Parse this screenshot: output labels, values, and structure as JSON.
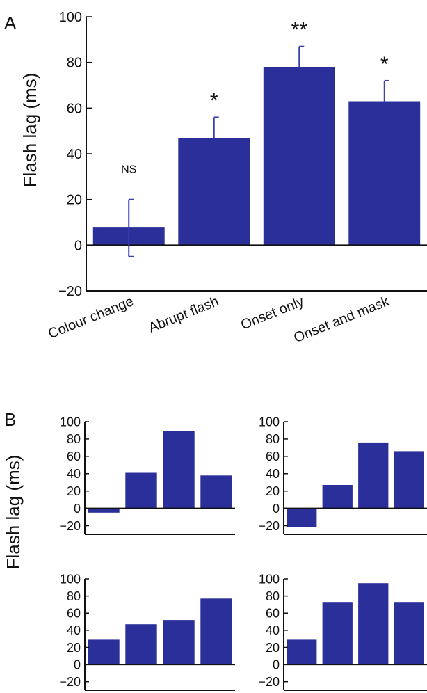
{
  "colors": {
    "bar": "#2a2f9a",
    "error_bar": "#3a3fb2",
    "axis": "#111111",
    "background": "#ffffff"
  },
  "panel_labels": [
    "A",
    "B"
  ],
  "shared_ylabel": "Flash lag (ms)",
  "chart_data": [
    {
      "type": "bar",
      "panel": "A",
      "categories": [
        "Colour change",
        "Abrupt flash",
        "Onset only",
        "Onset and mask"
      ],
      "values": [
        8,
        47,
        78,
        63
      ],
      "error_upper": [
        20,
        56,
        87,
        72
      ],
      "error_lower": [
        -5,
        null,
        null,
        null
      ],
      "significance": [
        "NS",
        "*",
        "**",
        "*"
      ],
      "ylabel": "Flash lag (ms)",
      "ylim": [
        -20,
        100
      ],
      "yticks": [
        "−20",
        "0",
        "20",
        "40",
        "60",
        "80",
        "100"
      ],
      "ytick_values": [
        -20,
        0,
        20,
        40,
        60,
        80,
        100
      ]
    },
    {
      "type": "bar",
      "panel": "B-top-left",
      "values": [
        -5,
        41,
        89,
        38
      ],
      "ylim": [
        -30,
        100
      ],
      "yticks": [
        "−20",
        "0",
        "20",
        "40",
        "60",
        "80",
        "100"
      ],
      "ytick_values": [
        -20,
        0,
        20,
        40,
        60,
        80,
        100
      ]
    },
    {
      "type": "bar",
      "panel": "B-top-right",
      "values": [
        -22,
        27,
        76,
        66
      ],
      "ylim": [
        -30,
        100
      ],
      "yticks": [
        "−20",
        "0",
        "20",
        "40",
        "60",
        "80",
        "100"
      ],
      "ytick_values": [
        -20,
        0,
        20,
        40,
        60,
        80,
        100
      ]
    },
    {
      "type": "bar",
      "panel": "B-bottom-left",
      "values": [
        29,
        47,
        52,
        77
      ],
      "ylim": [
        -30,
        100
      ],
      "yticks": [
        "−20",
        "0",
        "20",
        "40",
        "60",
        "80",
        "100"
      ],
      "ytick_values": [
        -20,
        0,
        20,
        40,
        60,
        80,
        100
      ]
    },
    {
      "type": "bar",
      "panel": "B-bottom-right",
      "values": [
        29,
        73,
        95,
        73
      ],
      "ylim": [
        -30,
        100
      ],
      "yticks": [
        "−20",
        "0",
        "20",
        "40",
        "60",
        "80",
        "100"
      ],
      "ytick_values": [
        -20,
        0,
        20,
        40,
        60,
        80,
        100
      ]
    }
  ]
}
